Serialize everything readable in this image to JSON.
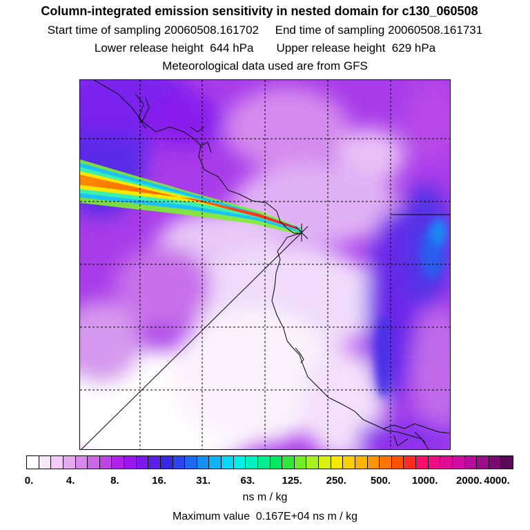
{
  "header": {
    "title": "Column-integrated emission sensitivity in nested domain for c130_060508",
    "start_label": "Start time of sampling 20060508.161702",
    "end_label": "End time of sampling 20060508.161731",
    "lower_label": "Lower release height  644 hPa",
    "upper_label": "Upper release height  629 hPa",
    "met_label": "Meteorological data used are from GFS"
  },
  "colorbar": {
    "ticks": [
      "0.",
      "4.",
      "8.",
      "16.",
      "31.",
      "63.",
      "125.",
      "250.",
      "500.",
      "1000.",
      "2000.",
      "4000."
    ],
    "colors": [
      "#ffffff",
      "#f8e6fb",
      "#f0ccf6",
      "#e4aaf0",
      "#d888ec",
      "#cc66e8",
      "#bf44e6",
      "#b022e8",
      "#9b16ee",
      "#7e18ee",
      "#5c1fe8",
      "#3a28e4",
      "#2a45ea",
      "#1f68f0",
      "#1590f5",
      "#0fb4f8",
      "#08d8f8",
      "#00f0e8",
      "#00f0c0",
      "#00ec90",
      "#00e860",
      "#30e838",
      "#70ec28",
      "#a8f020",
      "#d8f010",
      "#f8e800",
      "#ffd000",
      "#ffb400",
      "#ff9600",
      "#ff7400",
      "#ff5200",
      "#ff2a20",
      "#f8106c",
      "#ee0c88",
      "#e00c98",
      "#d00ca4",
      "#b80c9c",
      "#9c0c8c",
      "#7a0a72",
      "#580a58"
    ],
    "units": "ns m / kg",
    "max_value": "Maximum value  0.167E+04 ns m / kg"
  }
}
